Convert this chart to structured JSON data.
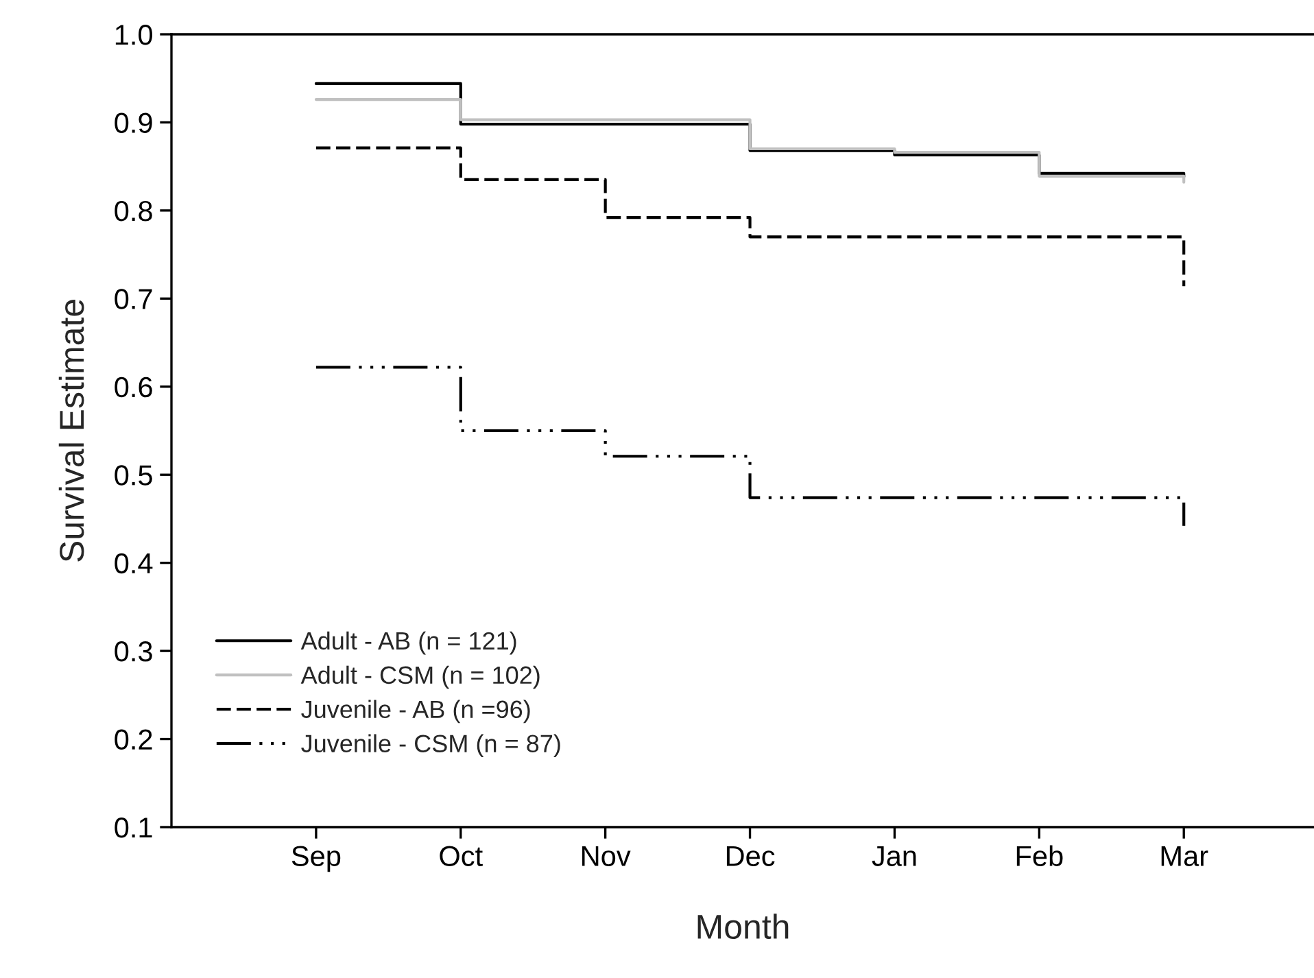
{
  "chart_data": {
    "type": "step",
    "xlabel": "Month",
    "ylabel": "Survival Estimate",
    "categories": [
      "Sep",
      "Oct",
      "Nov",
      "Dec",
      "Jan",
      "Feb",
      "Mar"
    ],
    "series": [
      {
        "name": "Adult - AB (n = 121)",
        "color": "#000000",
        "line_style": "solid",
        "values": [
          0.944,
          0.898,
          0.898,
          0.868,
          0.863,
          0.842,
          0.838
        ]
      },
      {
        "name": "Adult - CSM (n = 102)",
        "color": "#c0c0c0",
        "line_style": "solid",
        "values": [
          0.926,
          0.903,
          0.903,
          0.87,
          0.866,
          0.839,
          0.832
        ]
      },
      {
        "name": "Juvenile - AB (n =96)",
        "color": "#000000",
        "line_style": "dashed",
        "values": [
          0.871,
          0.835,
          0.792,
          0.77,
          0.77,
          0.77,
          0.714
        ]
      },
      {
        "name": "Juvenile - CSM (n = 87)",
        "color": "#000000",
        "line_style": "dashdotdot",
        "values": [
          0.622,
          0.55,
          0.521,
          0.474,
          0.474,
          0.474,
          0.442
        ]
      }
    ],
    "ylim": [
      0.1,
      1.0
    ],
    "yticks": [
      {
        "value": 0.1,
        "label": "0.1"
      },
      {
        "value": 0.2,
        "label": "0.2"
      },
      {
        "value": 0.3,
        "label": "0.3"
      },
      {
        "value": 0.4,
        "label": "0.4"
      },
      {
        "value": 0.5,
        "label": "0.5"
      },
      {
        "value": 0.6,
        "label": "0.6"
      },
      {
        "value": 0.7,
        "label": "0.7"
      },
      {
        "value": 0.8,
        "label": "0.8"
      },
      {
        "value": 0.9,
        "label": "0.9"
      },
      {
        "value": 1.0,
        "label": "1.0"
      }
    ],
    "legend": "bottom left",
    "grid": false
  }
}
